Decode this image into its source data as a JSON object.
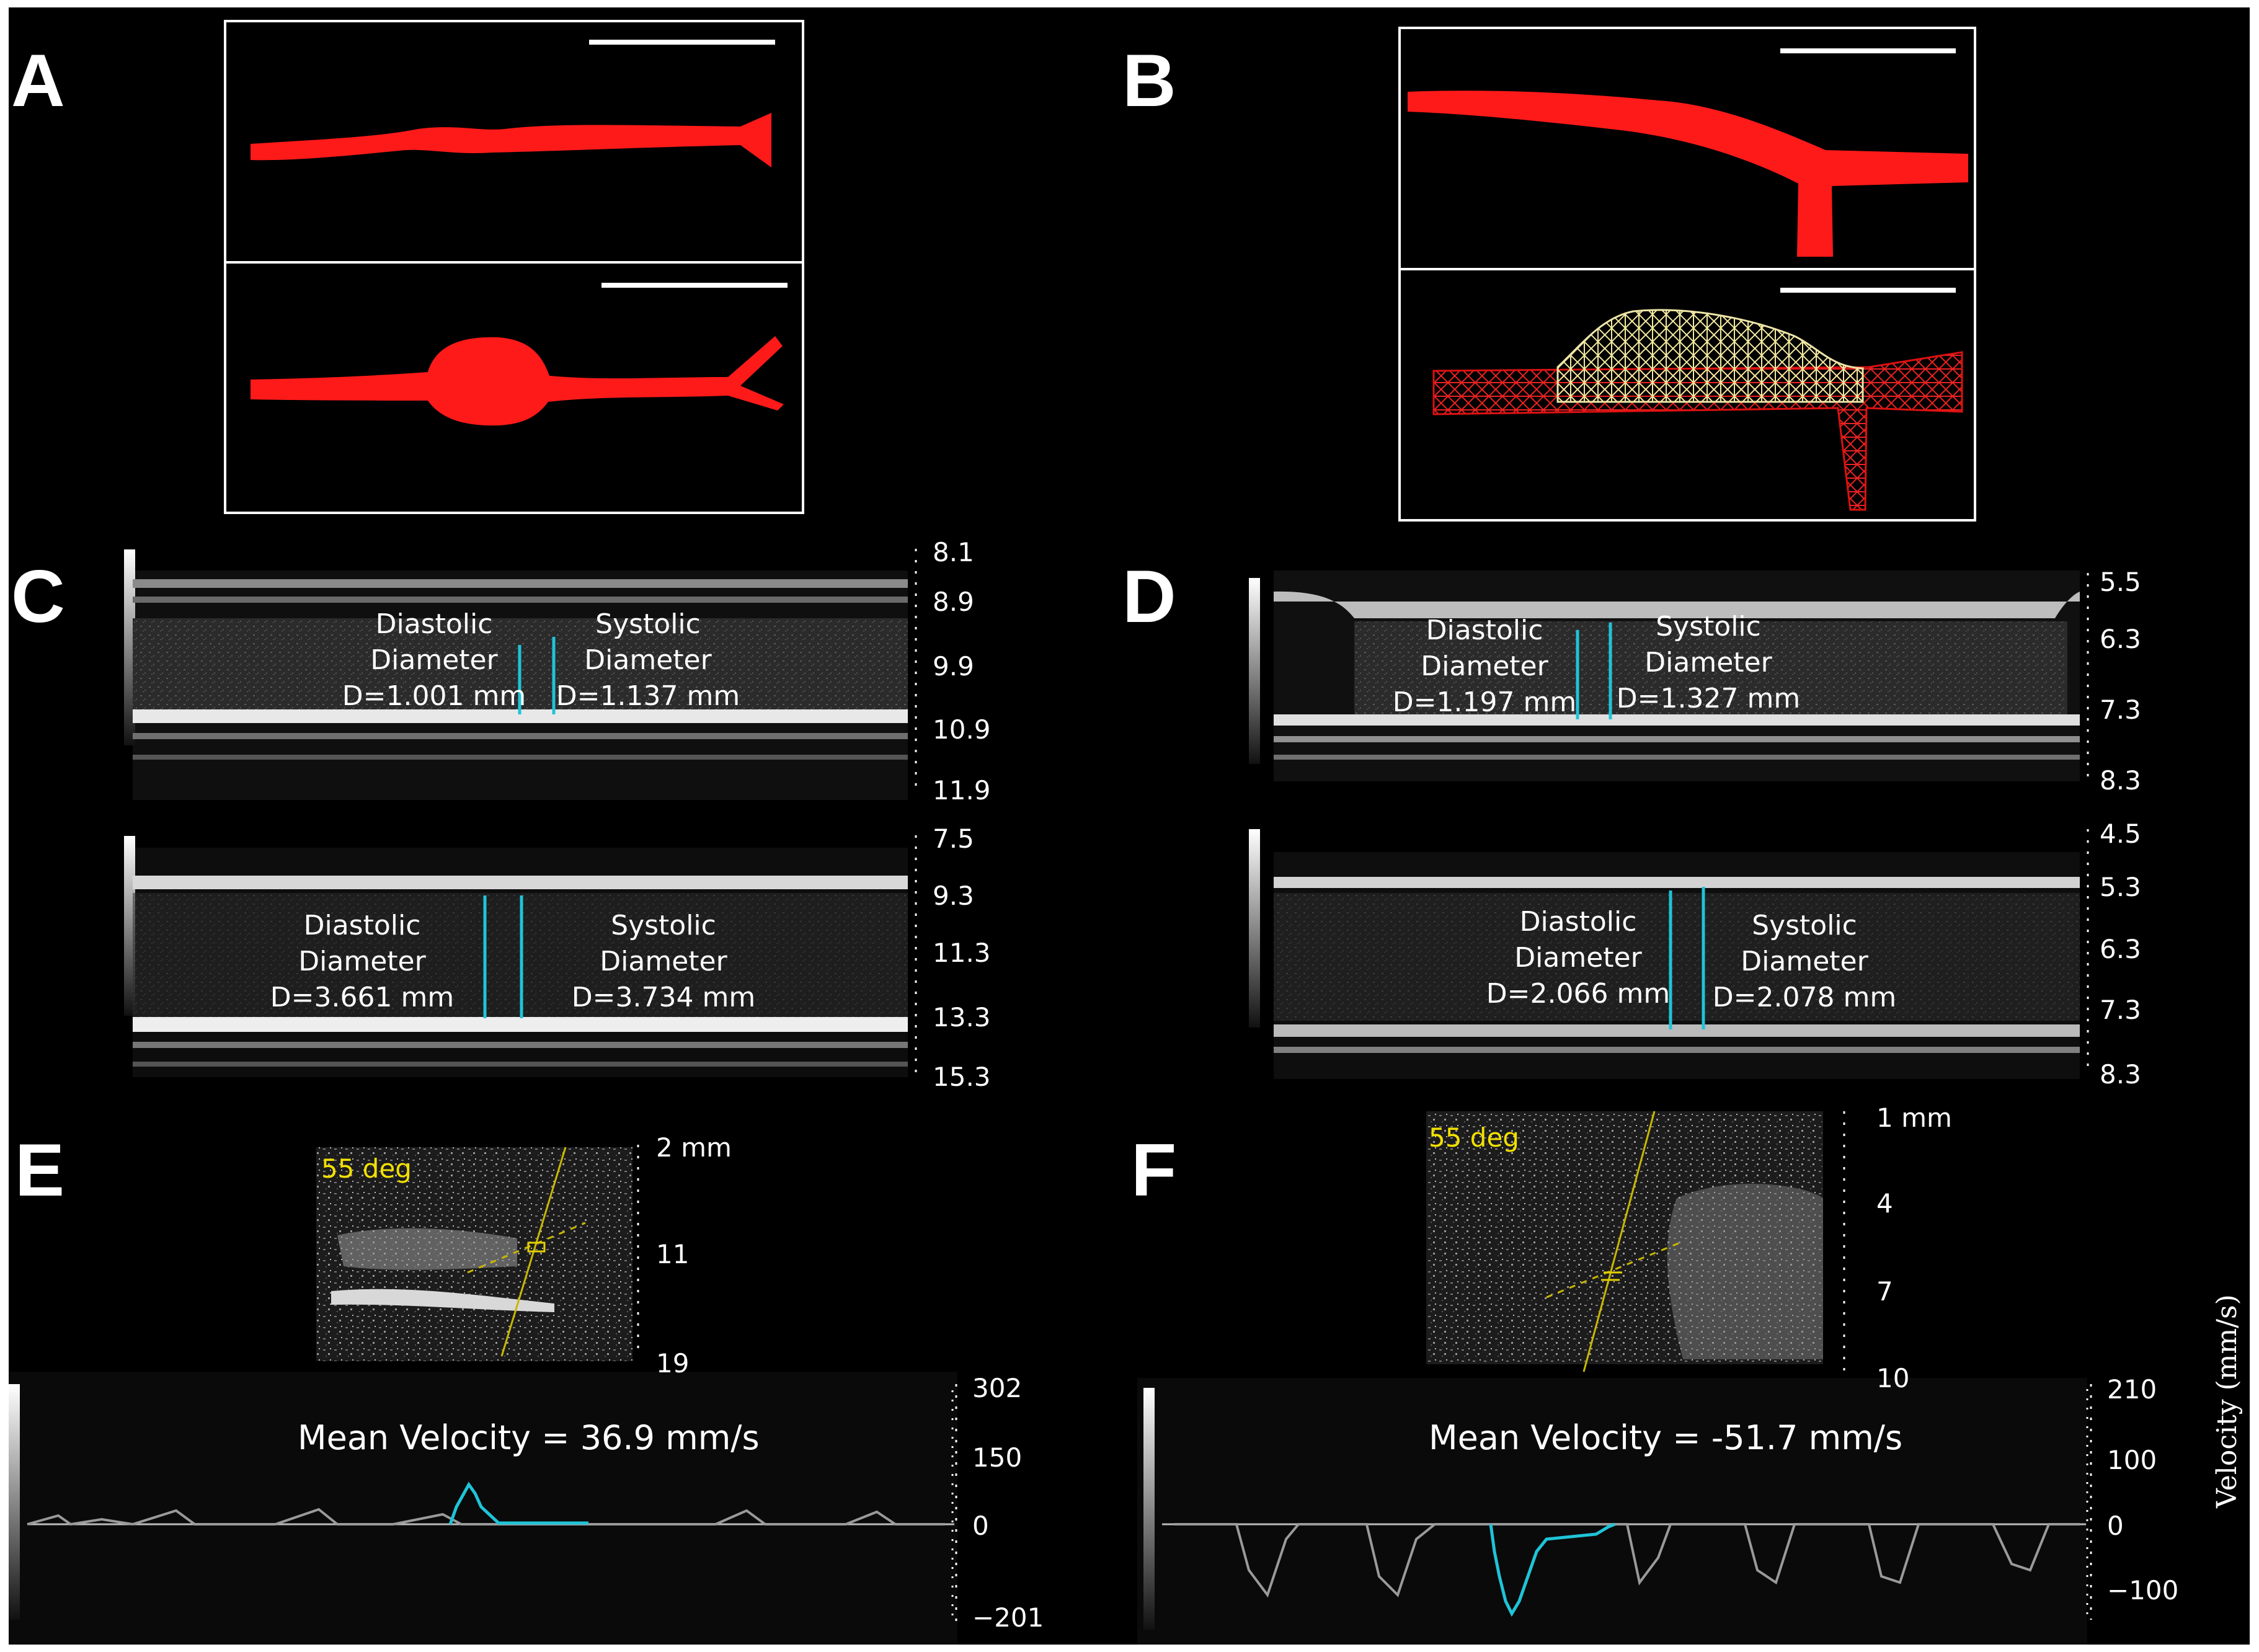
{
  "panels": {
    "a": {
      "label": "A"
    },
    "b": {
      "label": "B"
    },
    "c": {
      "label": "C",
      "top": {
        "diastolic": {
          "line1": "Diastolic",
          "line2": "Diameter",
          "value": "D=1.001 mm"
        },
        "systolic": {
          "line1": "Systolic",
          "line2": "Diameter",
          "value": "D=1.137 mm"
        },
        "ticks": [
          "8.1",
          "8.9",
          "9.9",
          "10.9",
          "11.9"
        ]
      },
      "bottom": {
        "diastolic": {
          "line1": "Diastolic",
          "line2": "Diameter",
          "value": "D=3.661 mm"
        },
        "systolic": {
          "line1": "Systolic",
          "line2": "Diameter",
          "value": "D=3.734 mm"
        },
        "ticks": [
          "7.5",
          "9.3",
          "11.3",
          "13.3",
          "15.3"
        ]
      }
    },
    "d": {
      "label": "D",
      "top": {
        "diastolic": {
          "line1": "Diastolic",
          "line2": "Diameter",
          "value": "D=1.197 mm"
        },
        "systolic": {
          "line1": "Systolic",
          "line2": "Diameter",
          "value": "D=1.327 mm"
        },
        "ticks": [
          "5.5",
          "6.3",
          "7.3",
          "8.3"
        ]
      },
      "bottom": {
        "diastolic": {
          "line1": "Diastolic",
          "line2": "Diameter",
          "value": "D=2.066 mm"
        },
        "systolic": {
          "line1": "Systolic",
          "line2": "Diameter",
          "value": "D=2.078 mm"
        },
        "ticks": [
          "4.5",
          "5.3",
          "6.3",
          "7.3",
          "8.3"
        ]
      }
    },
    "e": {
      "label": "E",
      "angle": "55 deg",
      "depth_ticks": [
        "2 mm",
        "11",
        "19"
      ],
      "mean_velocity": "Mean Velocity = 36.9 mm/s",
      "velocity_ticks": [
        "302",
        "150",
        "0",
        "−201"
      ]
    },
    "f": {
      "label": "F",
      "angle": "55 deg",
      "depth_ticks": [
        "1 mm",
        "4",
        "7",
        "10"
      ],
      "mean_velocity": "Mean Velocity = -51.7 mm/s",
      "velocity_ticks": [
        "210",
        "100",
        "0",
        "−100"
      ],
      "velocity_axis_label": "Velocity (mm/s)"
    }
  },
  "colors": {
    "vessel": "#ff1a1a",
    "measurement": "#1fc4d8",
    "angle_text": "#f2e000",
    "mesh_thrombus": "#f3eaa0"
  }
}
